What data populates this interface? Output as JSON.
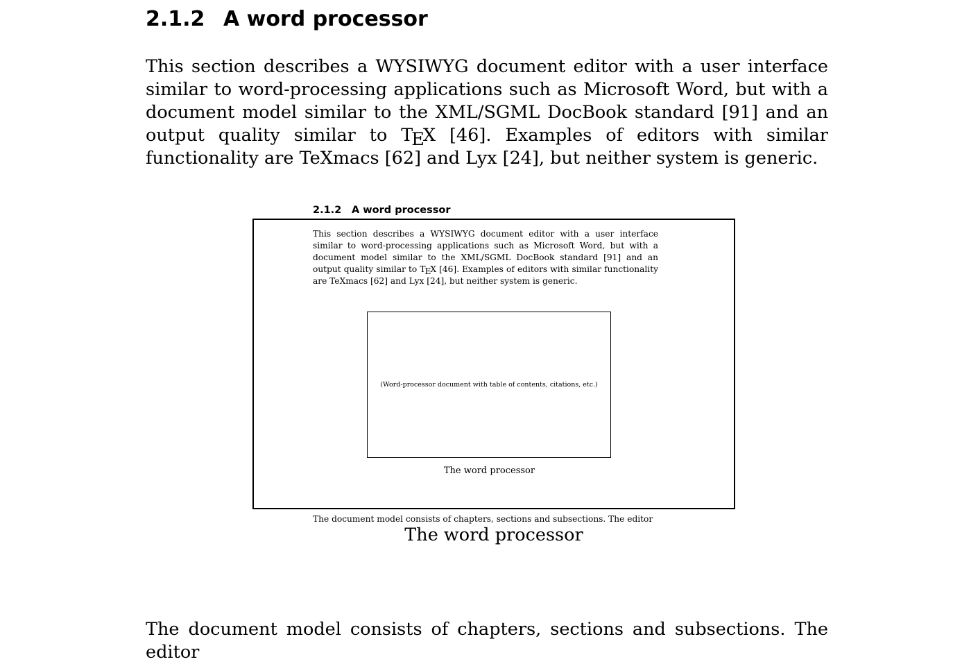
{
  "section": {
    "number": "2.1.2",
    "title": "A word processor"
  },
  "intro": {
    "before_tex": "This section describes a WYSIWYG document editor with a user interface similar to word-processing applications such as Microsoft Word, but with a document model similar to the XML/SGML DocBook standard [91] and an output quality similar to ",
    "tex_t": "T",
    "tex_e": "E",
    "tex_x": "X",
    "after_tex": " [46]. Examples of editors with similar functionality are TeXmacs [62] and Lyx [24], but neither system is generic."
  },
  "figure": {
    "placeholder": "(Word-processor document with table of contents, citations, etc.)",
    "inner_caption": "The word processor",
    "tail_text": "The document model consists of chapters, sections and subsections. The editor",
    "caption": "The word processor"
  },
  "next_paragraph": {
    "text": "The document model consists of chapters, sections and subsections. The editor"
  }
}
